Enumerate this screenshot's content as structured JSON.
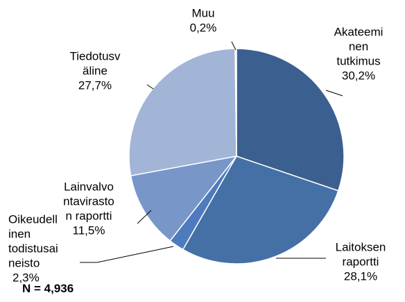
{
  "chart_data": {
    "type": "pie",
    "categories": [
      [
        "Akateemi",
        "nen",
        "tutkimus"
      ],
      [
        "Laitoksen",
        "raportti"
      ],
      [
        "Oikeudell",
        "inen",
        "todistusai",
        "neisto"
      ],
      [
        "Lainvalvo",
        "ntavirasto",
        "n raportti"
      ],
      [
        "Tiedotusv",
        "äline"
      ],
      [
        "Muu"
      ]
    ],
    "values": [
      30.2,
      28.1,
      2.3,
      11.5,
      27.7,
      0.2
    ],
    "value_labels": [
      "30,2%",
      "28,1%",
      "2,3%",
      "11,5%",
      "27,7%",
      "0,2%"
    ],
    "colors": [
      "#3b5f8e",
      "#4570a6",
      "#4d7bbd",
      "#7896c8",
      "#a2b5d6",
      "#c3cfe4"
    ],
    "note": "N = 4,936"
  }
}
